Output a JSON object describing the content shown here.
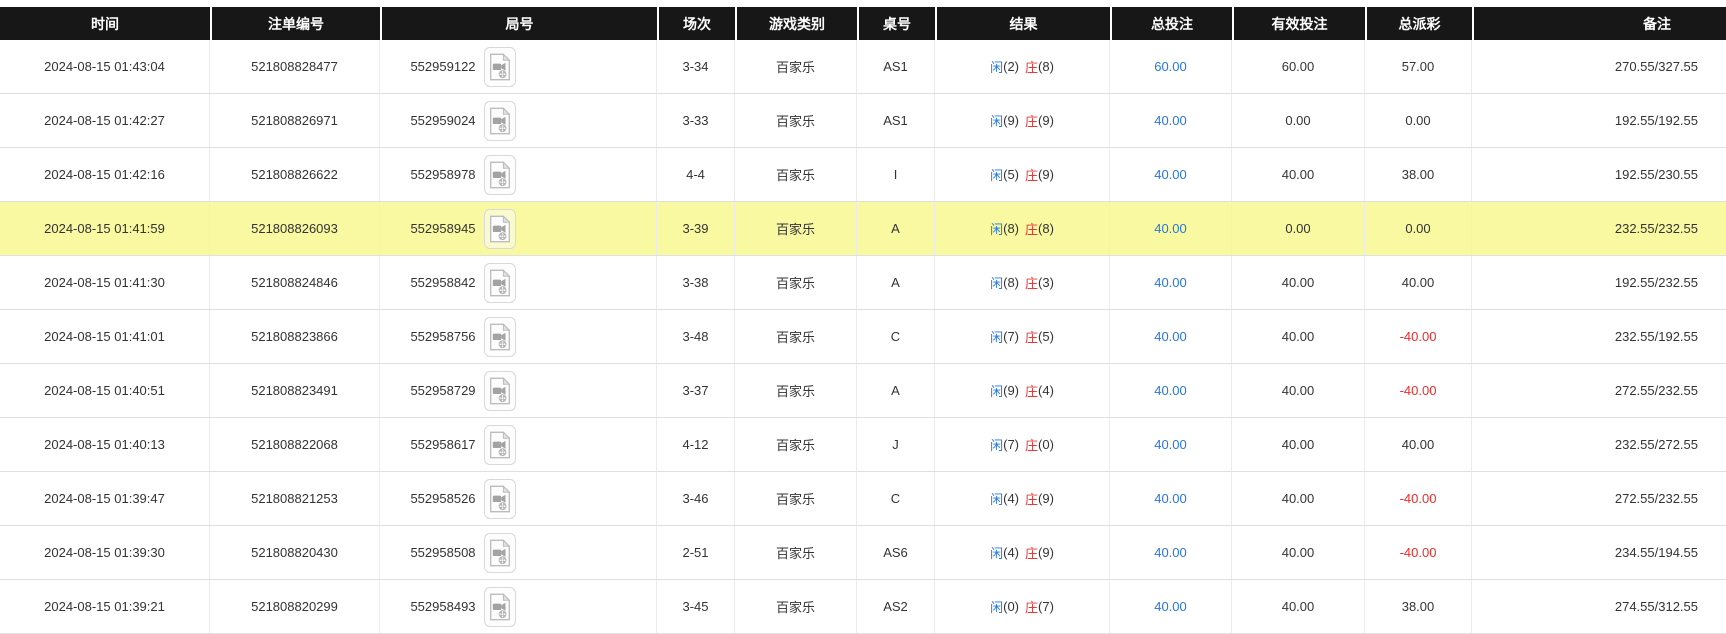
{
  "table": {
    "columns": [
      {
        "key": "time",
        "label": "时间"
      },
      {
        "key": "bet_id",
        "label": "注单编号"
      },
      {
        "key": "round",
        "label": "局号"
      },
      {
        "key": "session",
        "label": "场次"
      },
      {
        "key": "game",
        "label": "游戏类别"
      },
      {
        "key": "table_no",
        "label": "桌号"
      },
      {
        "key": "result",
        "label": "结果"
      },
      {
        "key": "total_bet",
        "label": "总投注"
      },
      {
        "key": "valid_bet",
        "label": "有效投注"
      },
      {
        "key": "payout",
        "label": "总派彩"
      },
      {
        "key": "remark",
        "label": "备注"
      }
    ],
    "result_labels": {
      "player": "闲",
      "banker": "庄"
    },
    "rows": [
      {
        "time": "2024-08-15 01:43:04",
        "bet_id": "521808828477",
        "round": "552959122",
        "session": "3-34",
        "game": "百家乐",
        "table_no": "AS1",
        "player": "2",
        "banker": "8",
        "total_bet": "60.00",
        "valid_bet": "60.00",
        "payout": "57.00",
        "remark": "270.55/327.55",
        "highlighted": false
      },
      {
        "time": "2024-08-15 01:42:27",
        "bet_id": "521808826971",
        "round": "552959024",
        "session": "3-33",
        "game": "百家乐",
        "table_no": "AS1",
        "player": "9",
        "banker": "9",
        "total_bet": "40.00",
        "valid_bet": "0.00",
        "payout": "0.00",
        "remark": "192.55/192.55",
        "highlighted": false
      },
      {
        "time": "2024-08-15 01:42:16",
        "bet_id": "521808826622",
        "round": "552958978",
        "session": "4-4",
        "game": "百家乐",
        "table_no": "I",
        "player": "5",
        "banker": "9",
        "total_bet": "40.00",
        "valid_bet": "40.00",
        "payout": "38.00",
        "remark": "192.55/230.55",
        "highlighted": false
      },
      {
        "time": "2024-08-15 01:41:59",
        "bet_id": "521808826093",
        "round": "552958945",
        "session": "3-39",
        "game": "百家乐",
        "table_no": "A",
        "player": "8",
        "banker": "8",
        "total_bet": "40.00",
        "valid_bet": "0.00",
        "payout": "0.00",
        "remark": "232.55/232.55",
        "highlighted": true
      },
      {
        "time": "2024-08-15 01:41:30",
        "bet_id": "521808824846",
        "round": "552958842",
        "session": "3-38",
        "game": "百家乐",
        "table_no": "A",
        "player": "8",
        "banker": "3",
        "total_bet": "40.00",
        "valid_bet": "40.00",
        "payout": "40.00",
        "remark": "192.55/232.55",
        "highlighted": false
      },
      {
        "time": "2024-08-15 01:41:01",
        "bet_id": "521808823866",
        "round": "552958756",
        "session": "3-48",
        "game": "百家乐",
        "table_no": "C",
        "player": "7",
        "banker": "5",
        "total_bet": "40.00",
        "valid_bet": "40.00",
        "payout": "-40.00",
        "remark": "232.55/192.55",
        "highlighted": false
      },
      {
        "time": "2024-08-15 01:40:51",
        "bet_id": "521808823491",
        "round": "552958729",
        "session": "3-37",
        "game": "百家乐",
        "table_no": "A",
        "player": "9",
        "banker": "4",
        "total_bet": "40.00",
        "valid_bet": "40.00",
        "payout": "-40.00",
        "remark": "272.55/232.55",
        "highlighted": false
      },
      {
        "time": "2024-08-15 01:40:13",
        "bet_id": "521808822068",
        "round": "552958617",
        "session": "4-12",
        "game": "百家乐",
        "table_no": "J",
        "player": "7",
        "banker": "0",
        "total_bet": "40.00",
        "valid_bet": "40.00",
        "payout": "40.00",
        "remark": "232.55/272.55",
        "highlighted": false
      },
      {
        "time": "2024-08-15 01:39:47",
        "bet_id": "521808821253",
        "round": "552958526",
        "session": "3-46",
        "game": "百家乐",
        "table_no": "C",
        "player": "4",
        "banker": "9",
        "total_bet": "40.00",
        "valid_bet": "40.00",
        "payout": "-40.00",
        "remark": "272.55/232.55",
        "highlighted": false
      },
      {
        "time": "2024-08-15 01:39:30",
        "bet_id": "521808820430",
        "round": "552958508",
        "session": "2-51",
        "game": "百家乐",
        "table_no": "AS6",
        "player": "4",
        "banker": "9",
        "total_bet": "40.00",
        "valid_bet": "40.00",
        "payout": "-40.00",
        "remark": "234.55/194.55",
        "highlighted": false
      },
      {
        "time": "2024-08-15 01:39:21",
        "bet_id": "521808820299",
        "round": "552958493",
        "session": "3-45",
        "game": "百家乐",
        "table_no": "AS2",
        "player": "0",
        "banker": "7",
        "total_bet": "40.00",
        "valid_bet": "40.00",
        "payout": "38.00",
        "remark": "274.55/312.55",
        "highlighted": false
      }
    ]
  },
  "icons": {
    "video_replay": "video-replay-icon"
  },
  "colors": {
    "header_bg": "#171717",
    "header_text": "#ffffff",
    "row_text": "#333333",
    "highlight_yellow": "#f9f9a2",
    "link_blue": "#2577e6",
    "banker_red": "#e23b3b",
    "negative_red": "#f02b2b",
    "row_border": "#e0e0e0",
    "col_border": "#ececec"
  }
}
